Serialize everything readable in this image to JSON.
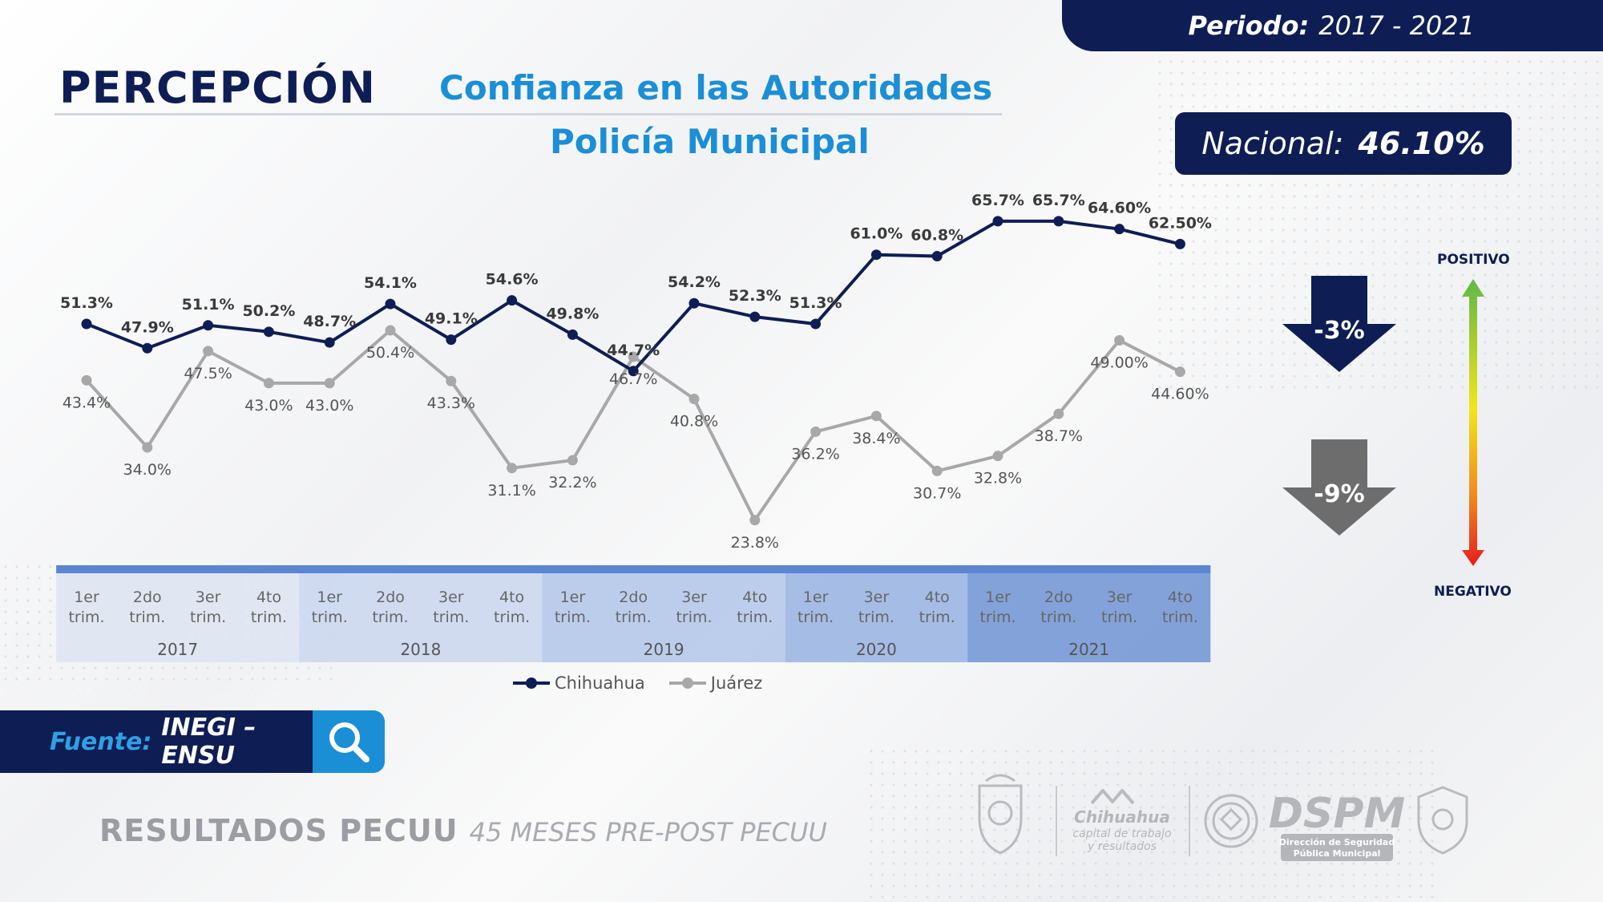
{
  "header": {
    "period_label": "Periodo:",
    "period_value": "2017 - 2021",
    "title": "PERCEPCIÓN",
    "subtitle_1": "Confianza en las Autoridades",
    "subtitle_2": "Policía Municipal"
  },
  "nacional": {
    "label": "Nacional:",
    "value": "46.10%"
  },
  "indicators": {
    "chihuahua_change": "-3%",
    "juarez_change": "-9%",
    "scale_top": "POSITIVO",
    "scale_bottom": "NEGATIVO"
  },
  "source": {
    "label": "Fuente:",
    "value": "INEGI – ENSU"
  },
  "footer": {
    "results_bold": "RESULTADOS PECUU",
    "results_italic": "45 MESES PRE-POST PECUU"
  },
  "logos": {
    "chihuahua_line1": "Chihuahua",
    "chihuahua_line2": "capital de trabajo",
    "chihuahua_line3": "y resultados",
    "dspm": "DSPM",
    "dspm_sub1": "Dirección de Seguridad",
    "dspm_sub2": "Pública Municipal"
  },
  "colors": {
    "navy": "#0e1e54",
    "blue": "#1a8fd6",
    "chihuahua": "#0e1e54",
    "juarez": "#a8a8a8",
    "arrow_chihuahua": "#0e1e54",
    "arrow_juarez": "#6d6d6d"
  },
  "chart_data": {
    "type": "line",
    "x": [
      "1er trim.",
      "2do trim.",
      "3er trim.",
      "4to trim.",
      "1er trim.",
      "2do trim.",
      "3er trim.",
      "4to trim.",
      "1er trim.",
      "2do trim.",
      "3er trim.",
      "4to trim.",
      "1er trim.",
      "3er trim.",
      "4to trim.",
      "1er trim.",
      "2do trim.",
      "3er trim.",
      "4to trim."
    ],
    "years": [
      {
        "label": "2017",
        "count": 4
      },
      {
        "label": "2018",
        "count": 4
      },
      {
        "label": "2019",
        "count": 4
      },
      {
        "label": "2020",
        "count": 3
      },
      {
        "label": "2021",
        "count": 4
      }
    ],
    "series": [
      {
        "name": "Chihuahua",
        "values": [
          51.3,
          47.9,
          51.1,
          50.2,
          48.7,
          54.1,
          49.1,
          54.6,
          49.8,
          44.7,
          54.2,
          52.3,
          51.3,
          61.0,
          60.8,
          65.7,
          65.7,
          64.6,
          62.5
        ],
        "labels": [
          "51.3%",
          "47.9%",
          "51.1%",
          "50.2%",
          "48.7%",
          "54.1%",
          "49.1%",
          "54.6%",
          "49.8%",
          "44.7%",
          "54.2%",
          "52.3%",
          "51.3%",
          "61.0%",
          "60.8%",
          "65.7%",
          "65.7%",
          "64.60%",
          "62.50%"
        ]
      },
      {
        "name": "Juárez",
        "values": [
          43.4,
          34.0,
          47.5,
          43.0,
          43.0,
          50.4,
          43.3,
          31.1,
          32.2,
          46.7,
          40.8,
          23.8,
          36.2,
          38.4,
          30.7,
          32.8,
          38.7,
          49.0,
          44.6
        ],
        "labels": [
          "43.4%",
          "34.0%",
          "47.5%",
          "43.0%",
          "43.0%",
          "50.4%",
          "43.3%",
          "31.1%",
          "32.2%",
          "46.7%",
          "40.8%",
          "23.8%",
          "36.2%",
          "38.4%",
          "30.7%",
          "32.8%",
          "38.7%",
          "49.00%",
          "44.60%"
        ]
      }
    ],
    "legend_position": "bottom"
  }
}
